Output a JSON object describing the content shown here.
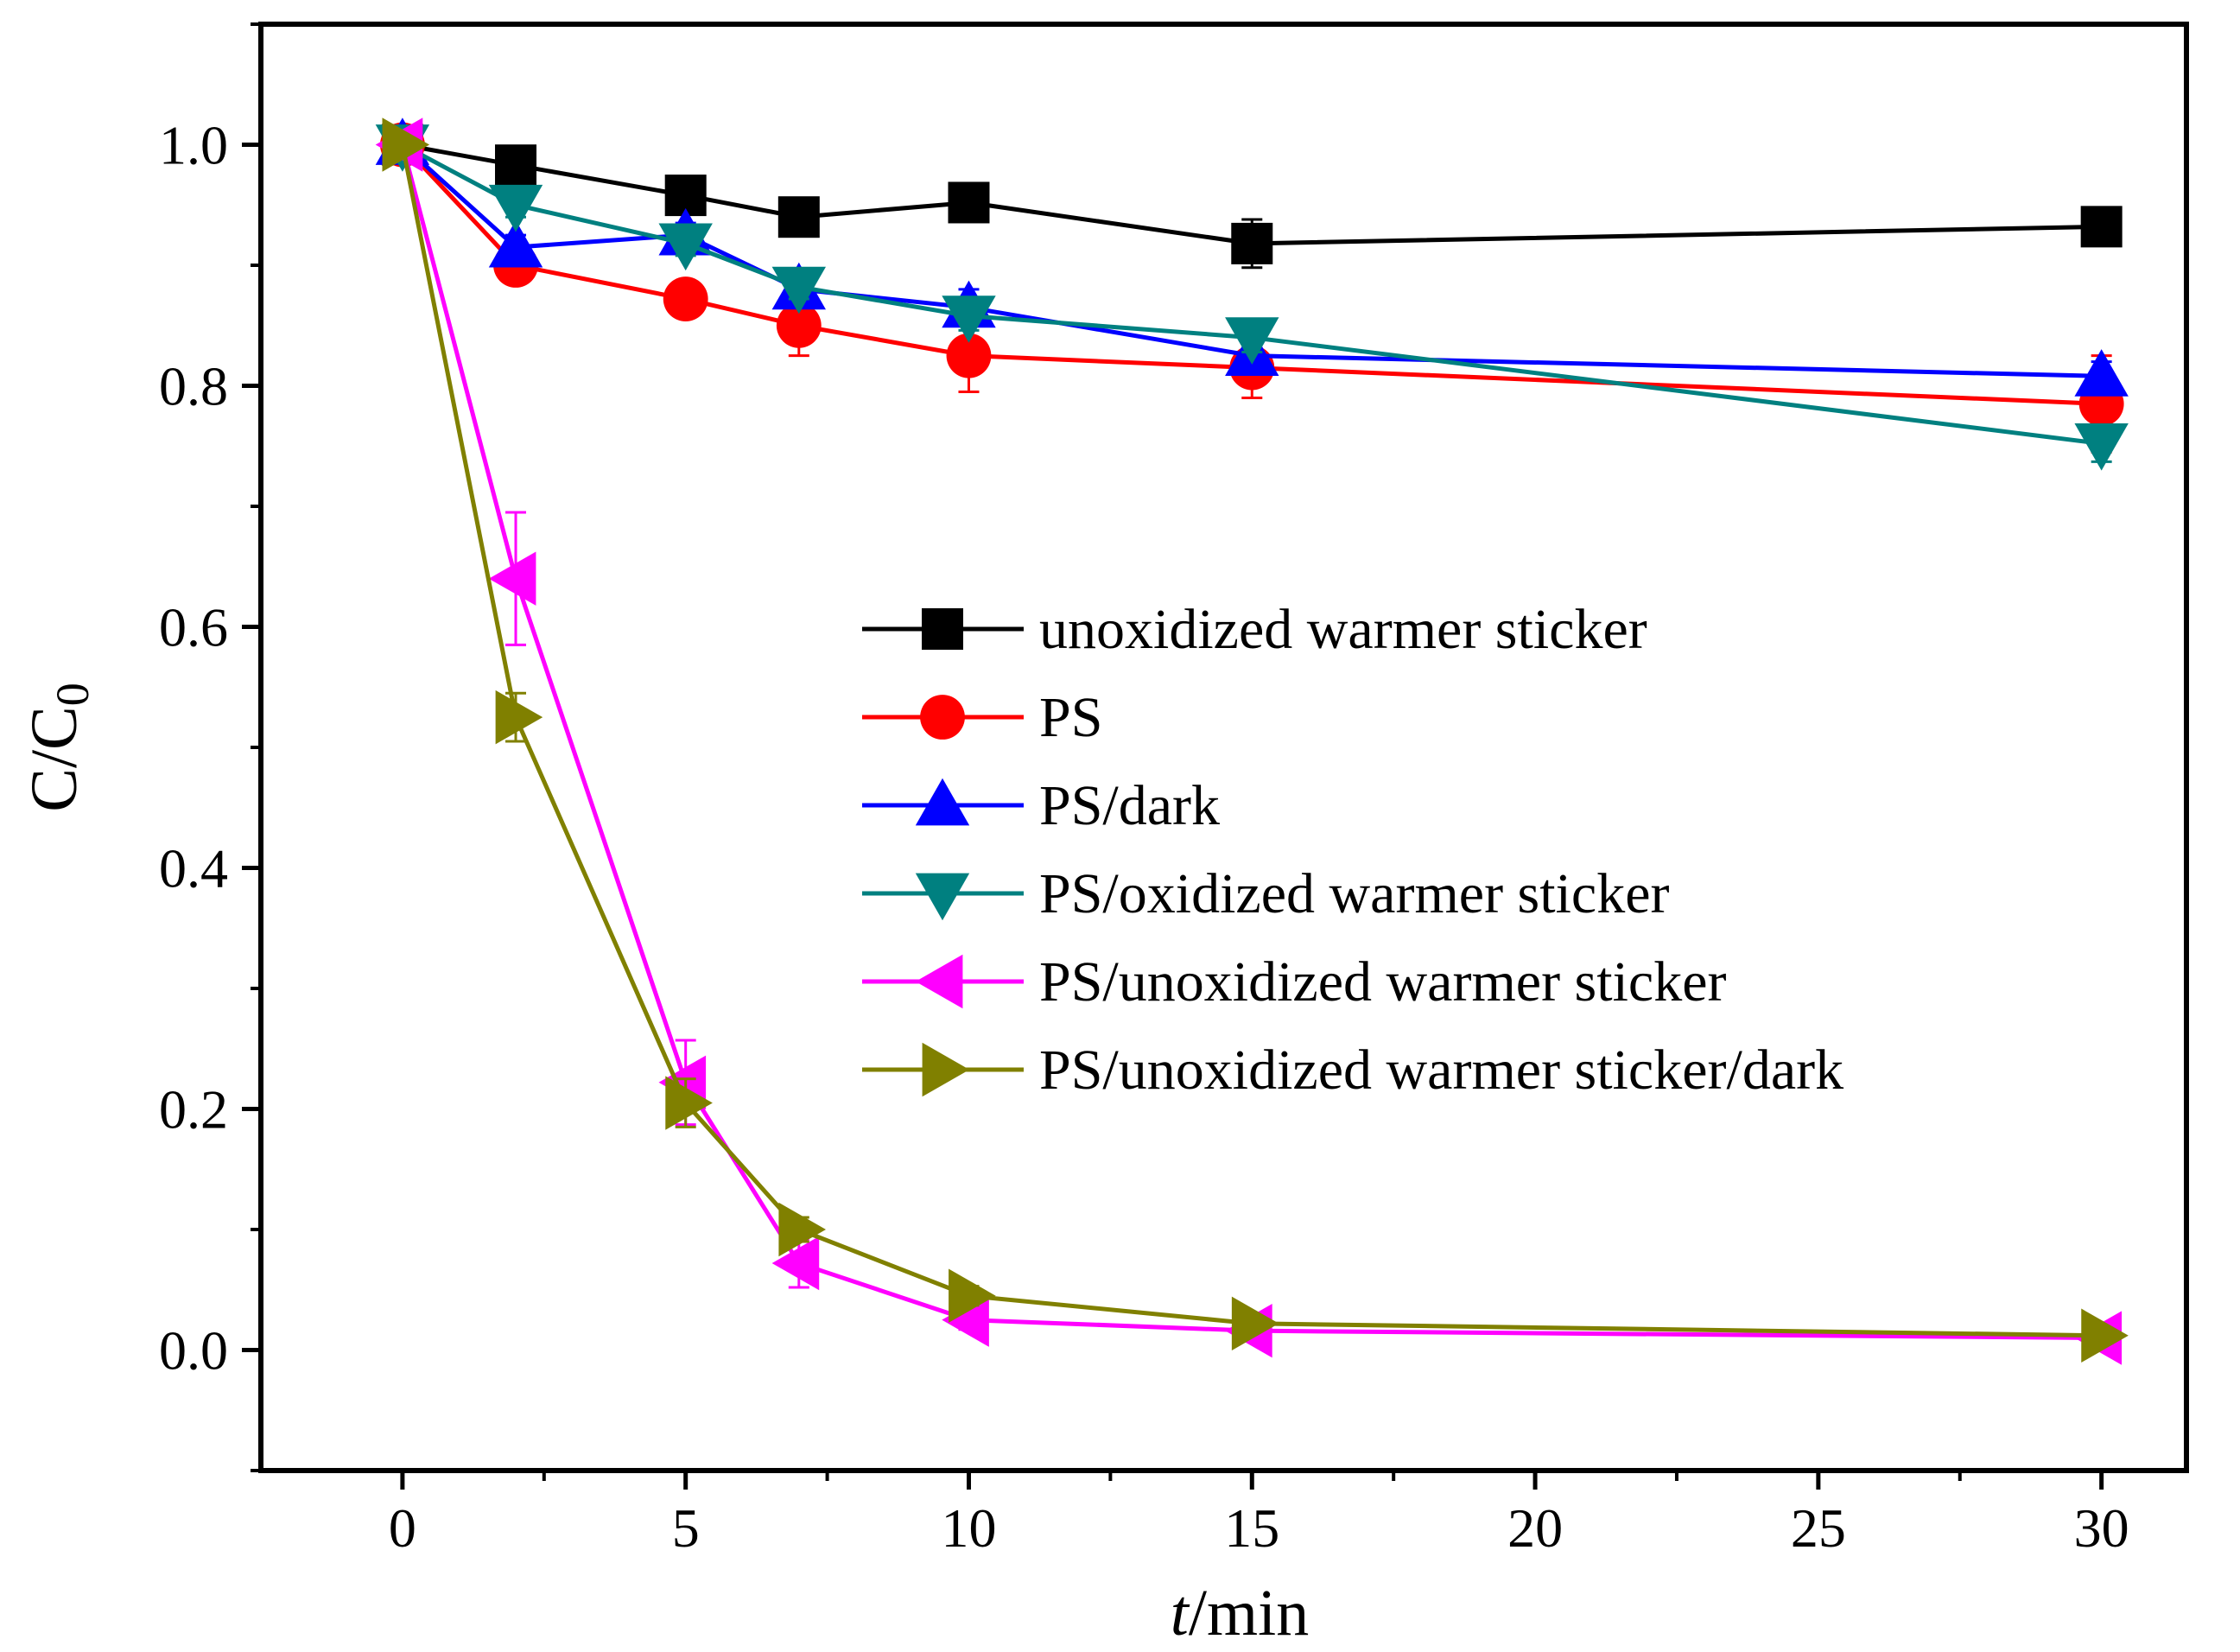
{
  "chart_data": {
    "type": "line",
    "title": "",
    "xlabel_italic": "t",
    "xlabel_rest": "/min",
    "ylabel_main": "C/C",
    "ylabel_sub": "0",
    "xlim": [
      -2.5,
      31.5
    ],
    "ylim": [
      -0.1,
      1.1
    ],
    "x_ticks": [
      0,
      5,
      10,
      15,
      20,
      25,
      30
    ],
    "x_tick_labels": [
      "0",
      "5",
      "10",
      "15",
      "20",
      "25",
      "30"
    ],
    "y_ticks": [
      0.0,
      0.2,
      0.4,
      0.6,
      0.8,
      1.0
    ],
    "y_tick_labels": [
      "0.0",
      "0.2",
      "0.4",
      "0.6",
      "0.8",
      "1.0"
    ],
    "grid": false,
    "legend_position": "center-right",
    "x": [
      0,
      2,
      5,
      7,
      10,
      15,
      30
    ],
    "series": [
      {
        "name": "unoxidized warmer sticker",
        "color": "#000000",
        "marker": "square",
        "values": [
          1.0,
          0.983,
          0.958,
          0.94,
          0.952,
          0.918,
          0.932
        ],
        "errors": [
          0.005,
          0.01,
          0.008,
          0.008,
          0.01,
          0.02,
          0.012
        ]
      },
      {
        "name": "PS",
        "color": "#ff0000",
        "marker": "circle",
        "values": [
          1.0,
          0.9,
          0.872,
          0.85,
          0.825,
          0.815,
          0.785
        ],
        "errors": [
          0.005,
          0.012,
          0.01,
          0.025,
          0.03,
          0.025,
          0.04
        ]
      },
      {
        "name": "PS/dark",
        "color": "#0000ff",
        "marker": "triangle-up",
        "values": [
          1.0,
          0.915,
          0.925,
          0.88,
          0.865,
          0.825,
          0.808
        ],
        "errors": [
          0.005,
          0.01,
          0.01,
          0.012,
          0.015,
          0.015,
          0.012
        ]
      },
      {
        "name": "PS/oxidized warmer sticker",
        "color": "#008080",
        "marker": "triangle-down",
        "values": [
          1.0,
          0.95,
          0.918,
          0.882,
          0.858,
          0.84,
          0.752
        ],
        "errors": [
          0.005,
          0.01,
          0.01,
          0.01,
          0.012,
          0.012,
          0.015
        ]
      },
      {
        "name": "PS/unoxidized warmer sticker",
        "color": "#ff00ff",
        "marker": "triangle-left",
        "values": [
          1.0,
          0.64,
          0.222,
          0.072,
          0.025,
          0.016,
          0.01
        ],
        "errors": [
          0.005,
          0.055,
          0.035,
          0.02,
          0.008,
          0.005,
          0.005
        ]
      },
      {
        "name": "PS/unoxidized warmer sticker/dark",
        "color": "#808000",
        "marker": "triangle-right",
        "values": [
          1.0,
          0.525,
          0.205,
          0.1,
          0.045,
          0.022,
          0.012
        ],
        "errors": [
          0.005,
          0.02,
          0.02,
          0.01,
          0.008,
          0.005,
          0.005
        ]
      }
    ]
  }
}
